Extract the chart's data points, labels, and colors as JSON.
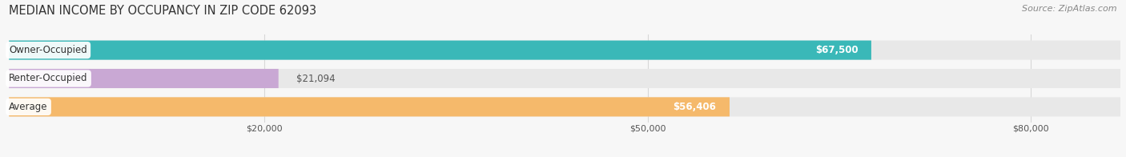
{
  "title": "MEDIAN INCOME BY OCCUPANCY IN ZIP CODE 62093",
  "source_text": "Source: ZipAtlas.com",
  "categories": [
    "Owner-Occupied",
    "Renter-Occupied",
    "Average"
  ],
  "values": [
    67500,
    21094,
    56406
  ],
  "bar_colors": [
    "#3ab8b8",
    "#c9a8d4",
    "#f5b96b"
  ],
  "bar_bg_color": "#e8e8e8",
  "value_labels": [
    "$67,500",
    "$21,094",
    "$56,406"
  ],
  "value_label_inside": [
    true,
    false,
    true
  ],
  "xlim": [
    0,
    87000
  ],
  "xticks": [
    20000,
    50000,
    80000
  ],
  "xtick_labels": [
    "$20,000",
    "$50,000",
    "$80,000"
  ],
  "figsize": [
    14.06,
    1.96
  ],
  "dpi": 100,
  "label_fontsize": 8.5,
  "title_fontsize": 10.5,
  "source_fontsize": 8,
  "tick_fontsize": 8,
  "bar_height": 0.68,
  "bg_color": "#f7f7f7",
  "grid_color": "#d0d0d0",
  "value_color": "#555555",
  "label_color": "#333333",
  "title_color": "#333333",
  "inside_label_color": "white",
  "outside_label_color": "#555555"
}
